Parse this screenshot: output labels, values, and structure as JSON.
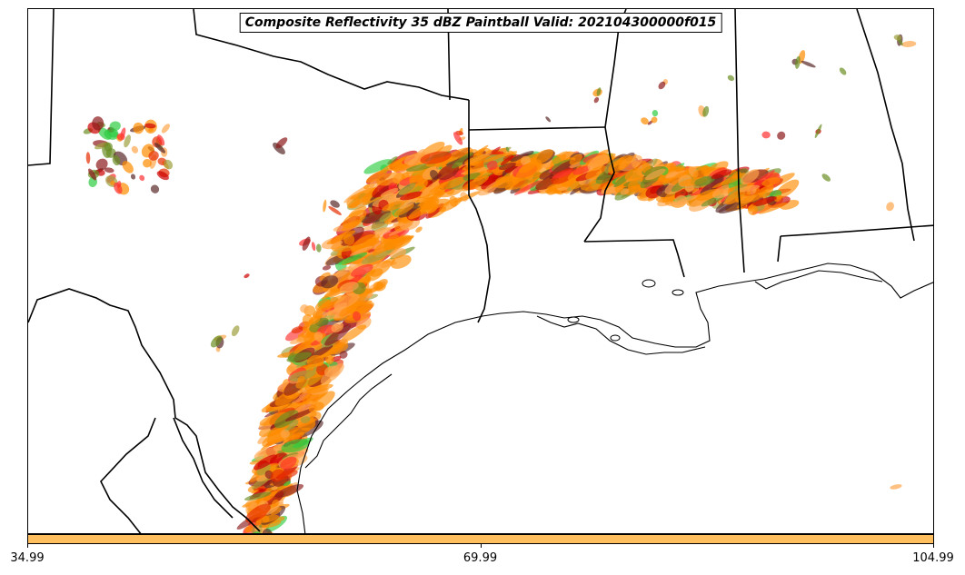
{
  "title": "Composite Reflectivity 35 dBZ Paintball Valid: 202104300000f015",
  "colorbar": {
    "color": "#ffbf5f",
    "ticks": [
      "34.99",
      "69.99",
      "104.99"
    ]
  },
  "members_palette": [
    "#ff8c00",
    "#e62e00",
    "#cc0000",
    "#ffa64d",
    "#2ecc40",
    "#8b1a1a",
    "#6b8e23",
    "#a0a040",
    "#ff3030",
    "#5a2a2a"
  ],
  "map": {
    "region": "Texas / Gulf Coast / Lower Mississippi Valley",
    "features": [
      "state-borders",
      "coastline",
      "international-border"
    ]
  }
}
